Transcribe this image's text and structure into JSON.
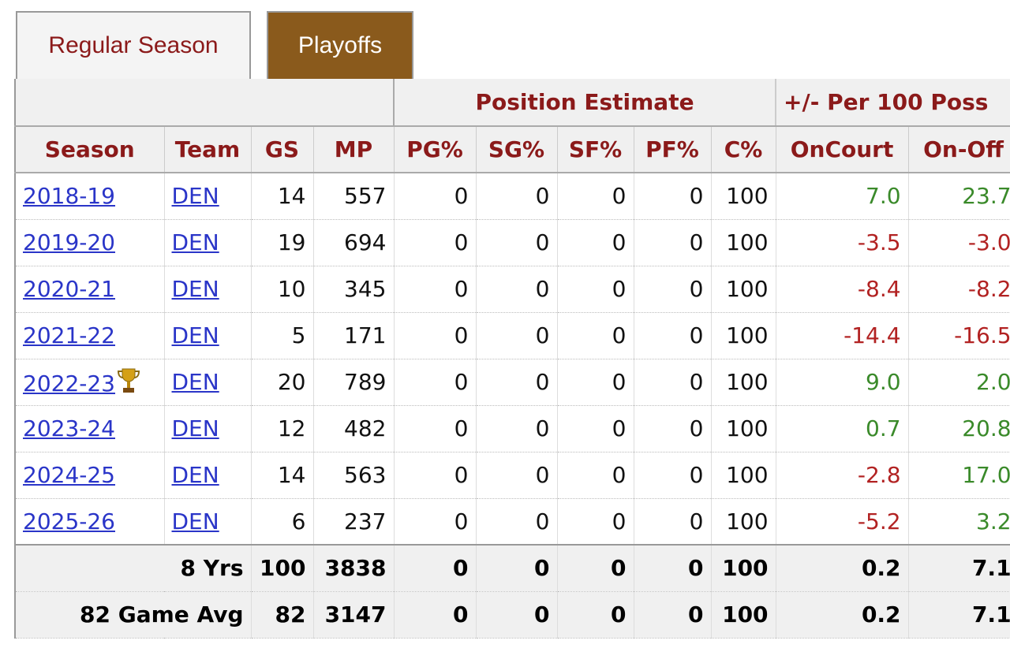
{
  "tabs": [
    "Regular Season",
    "Playoffs"
  ],
  "table": {
    "group_headers": [
      "Position Estimate",
      "+/- Per 100 Poss"
    ],
    "columns": [
      "Season",
      "Team",
      "GS",
      "MP",
      "PG%",
      "SG%",
      "SF%",
      "PF%",
      "C%",
      "OnCourt",
      "On-Off"
    ],
    "rows": [
      [
        "2018-19",
        "DEN",
        "14",
        "557",
        "0",
        "0",
        "0",
        "0",
        "100",
        "7.0",
        "23.7"
      ],
      [
        "2019-20",
        "DEN",
        "19",
        "694",
        "0",
        "0",
        "0",
        "0",
        "100",
        "-3.5",
        "-3.0"
      ],
      [
        "2020-21",
        "DEN",
        "10",
        "345",
        "0",
        "0",
        "0",
        "0",
        "100",
        "-8.4",
        "-8.2"
      ],
      [
        "2021-22",
        "DEN",
        "5",
        "171",
        "0",
        "0",
        "0",
        "0",
        "100",
        "-14.4",
        "-16.5"
      ],
      [
        "2022-23",
        "DEN",
        "20",
        "789",
        "0",
        "0",
        "0",
        "0",
        "100",
        "9.0",
        "2.0"
      ],
      [
        "2023-24",
        "DEN",
        "12",
        "482",
        "0",
        "0",
        "0",
        "0",
        "100",
        "0.7",
        "20.8"
      ],
      [
        "2024-25",
        "DEN",
        "14",
        "563",
        "0",
        "0",
        "0",
        "0",
        "100",
        "-2.8",
        "17.0"
      ],
      [
        "2025-26",
        "DEN",
        "6",
        "237",
        "0",
        "0",
        "0",
        "0",
        "100",
        "-5.2",
        "3.2"
      ]
    ],
    "footer": [
      [
        "8 Yrs",
        "100",
        "3838",
        "0",
        "0",
        "0",
        "0",
        "100",
        "0.2",
        "7.1"
      ],
      [
        "82 Game Avg",
        "82",
        "3147",
        "0",
        "0",
        "0",
        "0",
        "100",
        "0.2",
        "7.1"
      ]
    ]
  }
}
